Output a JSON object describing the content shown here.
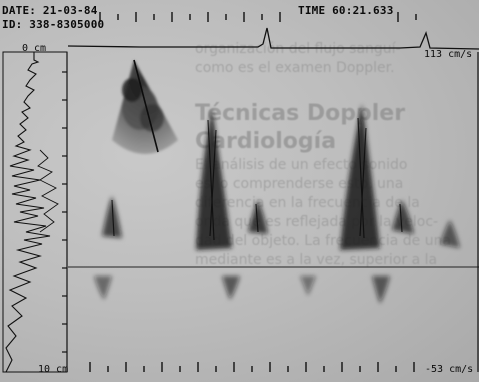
{
  "header": {
    "date": "DATE: 21-03-84",
    "id": "ID: 338-8305000",
    "time": "TIME  60:21.633"
  },
  "scale": {
    "top_depth": "0 cm",
    "bottom_depth": "10 cm",
    "velocity_top": "113 cm/s",
    "velocity_bottom": "-53 cm/s"
  },
  "background_text": {
    "lines": [
      "organización del flujo sanguí-",
      "como es el examen Doppler."
    ],
    "heading": [
      "Técnicas Doppler",
      "Cardiología"
    ],
    "body": [
      "El análisis de un efecto sonido",
      "es, o comprenderse esto, una",
      "diferencia en la frecuencia de la",
      "onda que es reflejada por la veloc-",
      "dad del objeto. La frecuencia de una",
      "mediante es a la vez, superior a la"
    ]
  },
  "colors": {
    "paper": "#bdbdbd",
    "ink": "#0b0b0b",
    "signal": "#1a1a1a"
  }
}
